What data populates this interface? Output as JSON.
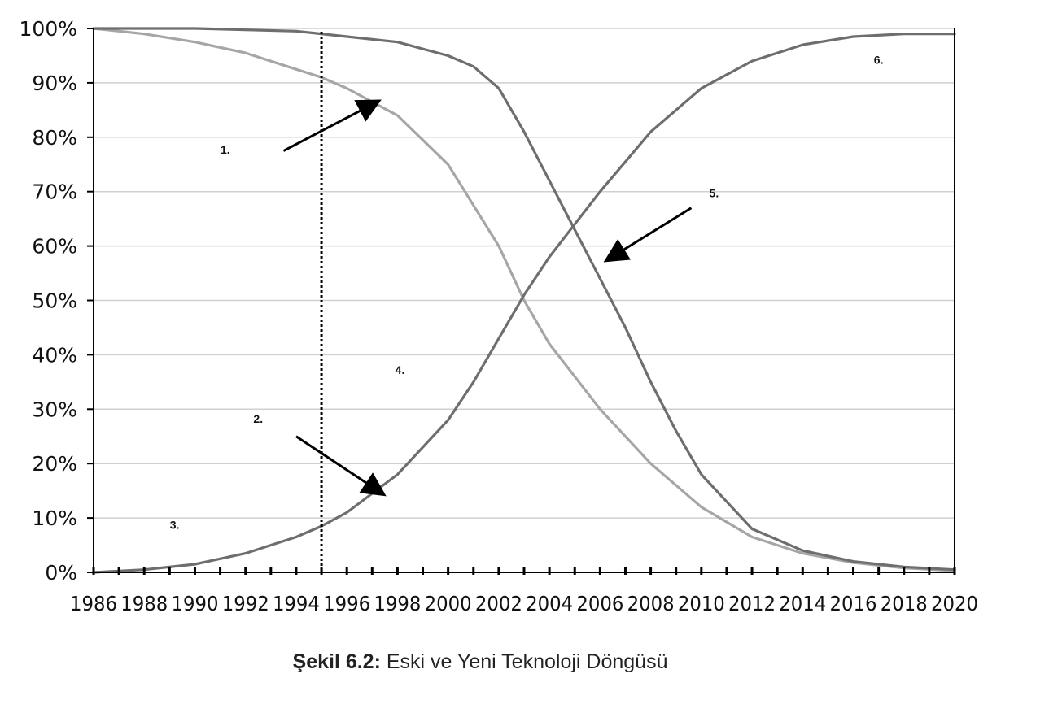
{
  "chart_data": {
    "type": "line",
    "title": "",
    "xlabel": "",
    "ylabel": "",
    "xlim": [
      1986,
      2020
    ],
    "ylim": [
      0,
      100
    ],
    "grid": true,
    "x_ticks": [
      "1986",
      "1988",
      "1990",
      "1992",
      "1994",
      "1996",
      "1998",
      "2000",
      "2002",
      "2004",
      "2006",
      "2008",
      "2010",
      "2012",
      "2014",
      "2016",
      "2018",
      "2020"
    ],
    "y_ticks": [
      "0%",
      "10%",
      "20%",
      "30%",
      "40%",
      "50%",
      "60%",
      "70%",
      "80%",
      "90%",
      "100%"
    ],
    "series": [
      {
        "color": "#a6a6a6",
        "x": [
          1986,
          1988,
          1990,
          1992,
          1994,
          1995,
          1996,
          1998,
          2000,
          2002,
          2003,
          2004,
          2006,
          2008,
          2010,
          2012,
          2014,
          2016,
          2018,
          2020
        ],
        "y": [
          100,
          99,
          97.5,
          95.5,
          92.5,
          91,
          89,
          84,
          75,
          60,
          50,
          42,
          30,
          20,
          12,
          6.5,
          3.5,
          1.8,
          0.8,
          0.3
        ]
      },
      {
        "color": "#6e6e6e",
        "x": [
          1986,
          1988,
          1990,
          1992,
          1994,
          1995,
          1996,
          1998,
          2000,
          2001,
          2002,
          2003,
          2004,
          2005,
          2006,
          2008,
          2010,
          2012,
          2014,
          2016,
          2018,
          2020
        ],
        "y": [
          0,
          0.5,
          1.5,
          3.5,
          6.5,
          8.5,
          11,
          18,
          28,
          35,
          43,
          51,
          58,
          64,
          70,
          81,
          89,
          94,
          97,
          98.5,
          99,
          99
        ]
      },
      {
        "color": "#6e6e6e",
        "x": [
          1986,
          1990,
          1994,
          1996,
          1998,
          2000,
          2001,
          2002,
          2003,
          2004,
          2005,
          2006,
          2007,
          2008,
          2009,
          2010,
          2012,
          2014,
          2016,
          2018,
          2020
        ],
        "y": [
          100,
          100,
          99.5,
          98.5,
          97.5,
          95,
          93,
          89,
          81,
          72,
          63,
          54,
          45,
          35,
          26,
          18,
          8,
          4,
          2,
          1,
          0.5
        ]
      }
    ],
    "marker_line": {
      "x": 1995,
      "style": "dotted"
    },
    "annotations": [
      {
        "label": "1.",
        "x": 1991.2,
        "y": 77
      },
      {
        "label": "2.",
        "x": 1992.5,
        "y": 27.5
      },
      {
        "label": "3.",
        "x": 1989.2,
        "y": 8
      },
      {
        "label": "4.",
        "x": 1998.1,
        "y": 36.5
      },
      {
        "label": "5.",
        "x": 2010.5,
        "y": 69
      },
      {
        "label": "6.",
        "x": 2017,
        "y": 93.5
      }
    ],
    "arrows": [
      {
        "from": [
          1993.5,
          77.5
        ],
        "to": [
          1997.2,
          86.5
        ]
      },
      {
        "from": [
          1994.0,
          25.0
        ],
        "to": [
          1997.4,
          14.5
        ]
      },
      {
        "from": [
          2009.6,
          67.0
        ],
        "to": [
          2006.3,
          57.5
        ]
      }
    ]
  },
  "caption": {
    "label": "Şekil 6.2:",
    "text": " Eski ve Yeni Teknoloji Döngüsü"
  }
}
